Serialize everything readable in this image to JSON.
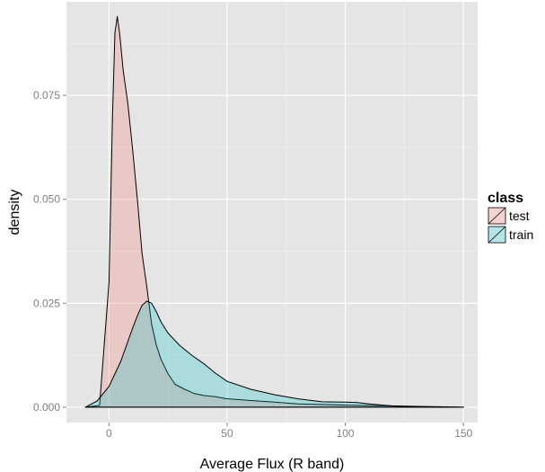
{
  "chart_data": {
    "type": "area",
    "xlabel": "Average Flux (R band)",
    "ylabel": "density",
    "xlim": [
      -18,
      156
    ],
    "ylim": [
      -0.0037,
      0.0975
    ],
    "x_ticks": [
      0,
      50,
      100,
      150
    ],
    "x_tick_labels": [
      "0",
      "50",
      "100",
      "150"
    ],
    "y_ticks": [
      0,
      0.025,
      0.05,
      0.075
    ],
    "y_tick_labels": [
      "0.000",
      "0.025",
      "0.050",
      "0.075"
    ],
    "grid": true,
    "legend": {
      "title": "class",
      "position": "right"
    },
    "series": [
      {
        "name": "test",
        "color": "#f8766d",
        "fill": "rgba(248,118,109,0.25)",
        "x": [
          -10,
          -4,
          0,
          1.5,
          2.5,
          3.5,
          4.5,
          6,
          8,
          10,
          12,
          14,
          16,
          18,
          20,
          22,
          25,
          28,
          32,
          36,
          40,
          45,
          50,
          60,
          70,
          80,
          100,
          120,
          150
        ],
        "y": [
          0,
          0.0004,
          0.03,
          0.07,
          0.09,
          0.094,
          0.09,
          0.081,
          0.073,
          0.062,
          0.05,
          0.037,
          0.029,
          0.02,
          0.015,
          0.0115,
          0.008,
          0.0055,
          0.0043,
          0.0033,
          0.0028,
          0.0025,
          0.002,
          0.0016,
          0.0012,
          0.0008,
          0.0005,
          0.0003,
          0
        ]
      },
      {
        "name": "train",
        "color": "#00bfc4",
        "fill": "rgba(0,191,196,0.25)",
        "x": [
          -10,
          -5,
          0,
          5,
          10,
          12,
          14,
          16,
          18,
          20,
          22,
          25,
          30,
          35,
          40,
          45,
          50,
          60,
          70,
          80,
          90,
          100,
          105,
          110,
          120,
          130,
          150
        ],
        "y": [
          0,
          0.0015,
          0.005,
          0.011,
          0.019,
          0.022,
          0.0245,
          0.0255,
          0.025,
          0.023,
          0.0205,
          0.0178,
          0.0148,
          0.0125,
          0.0105,
          0.0082,
          0.0062,
          0.0043,
          0.003,
          0.002,
          0.0013,
          0.0012,
          0.0011,
          0.0008,
          0.0003,
          0.0001,
          0
        ]
      }
    ]
  }
}
